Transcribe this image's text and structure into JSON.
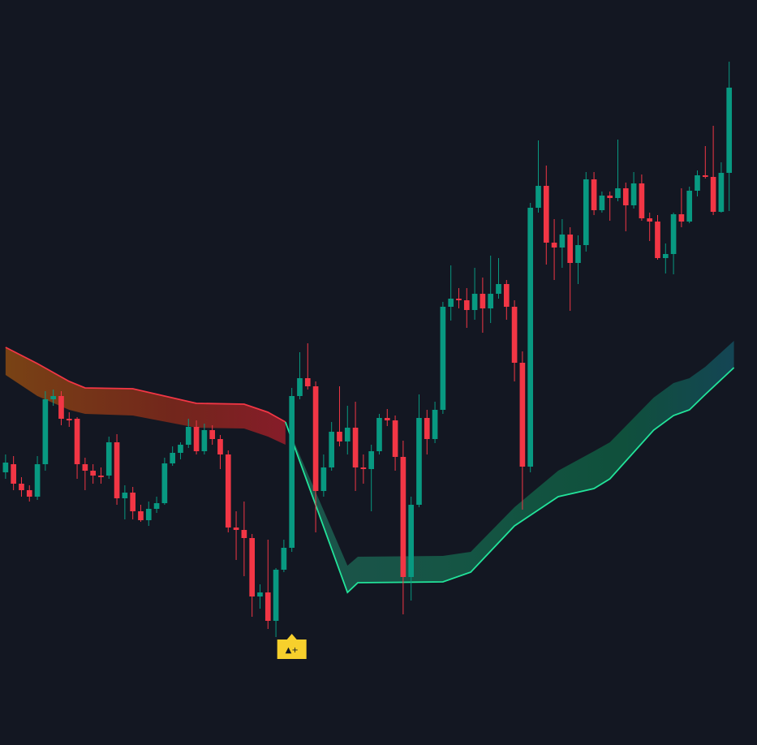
{
  "chart_data": {
    "type": "candlestick",
    "up_color": "#089981",
    "down_color": "#f23645",
    "xlim": [
      -0.7,
      94.5
    ],
    "ylim": [
      0,
      918
    ],
    "open": [
      336,
      346,
      322,
      314,
      306,
      346,
      426,
      430,
      402,
      402,
      346,
      338,
      332,
      332,
      373,
      304,
      311,
      288,
      277,
      291,
      298,
      347,
      360,
      370,
      392,
      362,
      388,
      377,
      358,
      268,
      265,
      255,
      183,
      188,
      153,
      216,
      243,
      430,
      452,
      442,
      313,
      342,
      386,
      374,
      391,
      342,
      340,
      362,
      403,
      400,
      355,
      207,
      296,
      403,
      377,
      413,
      540,
      550,
      548,
      536,
      556,
      538,
      556,
      568,
      540,
      471,
      343,
      662,
      689,
      619,
      613,
      629,
      594,
      616,
      697,
      659,
      677,
      674,
      686,
      665,
      692,
      649,
      645,
      600,
      605,
      654,
      645,
      683,
      702,
      700,
      657,
      705
    ],
    "close": [
      348,
      322,
      314,
      306,
      346,
      426,
      430,
      402,
      400,
      346,
      338,
      332,
      330,
      373,
      304,
      311,
      288,
      277,
      291,
      298,
      347,
      360,
      370,
      392,
      362,
      388,
      377,
      358,
      268,
      265,
      255,
      183,
      188,
      153,
      216,
      243,
      430,
      452,
      442,
      313,
      342,
      386,
      374,
      391,
      342,
      340,
      362,
      403,
      400,
      355,
      207,
      296,
      403,
      377,
      413,
      540,
      550,
      548,
      536,
      556,
      538,
      556,
      568,
      540,
      471,
      343,
      662,
      689,
      619,
      613,
      629,
      594,
      616,
      697,
      659,
      677,
      674,
      686,
      665,
      692,
      649,
      645,
      600,
      605,
      654,
      645,
      683,
      702,
      700,
      657,
      705,
      810
    ],
    "high": [
      358,
      356,
      330,
      320,
      356,
      436,
      438,
      436,
      410,
      404,
      354,
      346,
      342,
      380,
      383,
      320,
      318,
      296,
      300,
      306,
      354,
      368,
      373,
      402,
      400,
      396,
      394,
      382,
      363,
      288,
      300,
      260,
      198,
      253,
      218,
      253,
      440,
      484,
      495,
      448,
      358,
      398,
      442,
      418,
      423,
      358,
      370,
      408,
      414,
      406,
      375,
      306,
      432,
      413,
      423,
      546,
      591,
      563,
      563,
      588,
      576,
      603,
      600,
      573,
      548,
      485,
      668,
      745,
      714,
      648,
      648,
      638,
      628,
      706,
      706,
      682,
      682,
      746,
      693,
      706,
      703,
      656,
      653,
      618,
      656,
      686,
      688,
      708,
      738,
      763,
      718,
      842
    ],
    "low": [
      328,
      314,
      306,
      300,
      302,
      338,
      418,
      394,
      392,
      328,
      314,
      322,
      322,
      328,
      296,
      278,
      278,
      275,
      270,
      286,
      296,
      344,
      352,
      366,
      358,
      358,
      370,
      340,
      262,
      228,
      208,
      158,
      168,
      143,
      133,
      213,
      238,
      426,
      438,
      262,
      306,
      338,
      368,
      358,
      313,
      322,
      288,
      358,
      393,
      338,
      161,
      178,
      293,
      358,
      372,
      408,
      523,
      538,
      514,
      524,
      508,
      520,
      550,
      524,
      448,
      290,
      336,
      656,
      592,
      573,
      588,
      535,
      568,
      608,
      653,
      656,
      646,
      670,
      633,
      661,
      646,
      621,
      598,
      581,
      580,
      638,
      643,
      676,
      698,
      653,
      656,
      658
    ],
    "bands": [
      {
        "color": "#f23645",
        "x": [
          0,
          4,
          8,
          10,
          16,
          24,
          30,
          33,
          35.2
        ],
        "line": [
          490,
          470,
          448,
          440,
          439,
          421,
          420,
          410,
          398
        ],
        "edge": [
          456,
          430,
          413,
          408,
          406,
          391,
          390,
          380,
          370
        ]
      },
      {
        "color": "#22e39a",
        "x": [
          35.2,
          43,
          44.3,
          55,
          58.5,
          64,
          69.5,
          74,
          76,
          81.5,
          84,
          86,
          88,
          91.6
        ],
        "line": [
          398,
          188,
          200,
          201,
          213,
          270,
          306,
          316,
          328,
          388,
          406,
          413,
          432,
          465
        ],
        "edge": [
          398,
          221,
          232,
          233,
          238,
          293,
          338,
          362,
          373,
          428,
          446,
          452,
          466,
          498
        ]
      }
    ],
    "annotation": {
      "text": "▲+",
      "x": 36
    }
  }
}
